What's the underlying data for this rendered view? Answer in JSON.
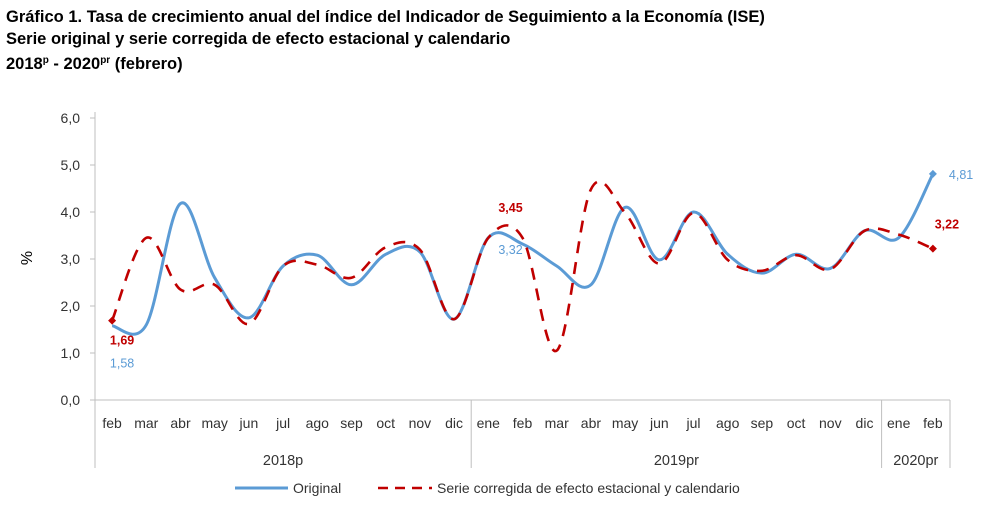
{
  "title": {
    "line1": "Gráfico 1. Tasa de crecimiento anual del índice del Indicador de Seguimiento a la Economía (ISE)",
    "line2": "Serie original y serie corregida de efecto estacional y calendario",
    "line3_prefix": "2018",
    "line3_sup1": "p",
    "line3_mid": " - 2020",
    "line3_sup2": "pr",
    "line3_suffix": " (febrero)"
  },
  "chart_data": {
    "type": "line",
    "ylabel": "%",
    "ylim": [
      0,
      6
    ],
    "yticks": [
      "0,0",
      "1,0",
      "2,0",
      "3,0",
      "4,0",
      "5,0",
      "6,0"
    ],
    "categories": [
      "feb",
      "mar",
      "abr",
      "may",
      "jun",
      "jul",
      "ago",
      "sep",
      "oct",
      "nov",
      "dic",
      "ene",
      "feb",
      "mar",
      "abr",
      "may",
      "jun",
      "jul",
      "ago",
      "sep",
      "oct",
      "nov",
      "dic",
      "ene",
      "feb"
    ],
    "groups": [
      {
        "label": "2018p",
        "start": 0,
        "end": 10
      },
      {
        "label": "2019pr",
        "start": 11,
        "end": 22
      },
      {
        "label": "2020pr",
        "start": 23,
        "end": 24
      }
    ],
    "series": [
      {
        "name": "Original",
        "color": "#5b9bd5",
        "style": "solid",
        "values": [
          1.58,
          1.6,
          4.18,
          2.6,
          1.75,
          2.85,
          3.08,
          2.45,
          3.1,
          3.15,
          1.72,
          3.45,
          3.32,
          2.85,
          2.45,
          4.1,
          2.98,
          4.0,
          3.1,
          2.7,
          3.1,
          2.8,
          3.6,
          3.45,
          4.81
        ]
      },
      {
        "name": "Serie corregida de efecto estacional y calendario",
        "color": "#c00000",
        "style": "dashed",
        "values": [
          1.69,
          3.45,
          2.35,
          2.45,
          1.62,
          2.85,
          2.88,
          2.6,
          3.25,
          3.2,
          1.72,
          3.45,
          3.45,
          1.05,
          4.48,
          3.98,
          2.9,
          3.98,
          2.98,
          2.75,
          3.08,
          2.78,
          3.6,
          3.52,
          3.22
        ]
      }
    ],
    "data_labels": [
      {
        "series": 0,
        "index": 0,
        "text": "1,58"
      },
      {
        "series": 1,
        "index": 0,
        "text": "1,69"
      },
      {
        "series": 1,
        "index": 12,
        "text": "3,45"
      },
      {
        "series": 0,
        "index": 12,
        "text": "3,32"
      },
      {
        "series": 0,
        "index": 24,
        "text": "4,81"
      },
      {
        "series": 1,
        "index": 24,
        "text": "3,22"
      }
    ],
    "legend_placement": "bottom",
    "grid": false
  }
}
